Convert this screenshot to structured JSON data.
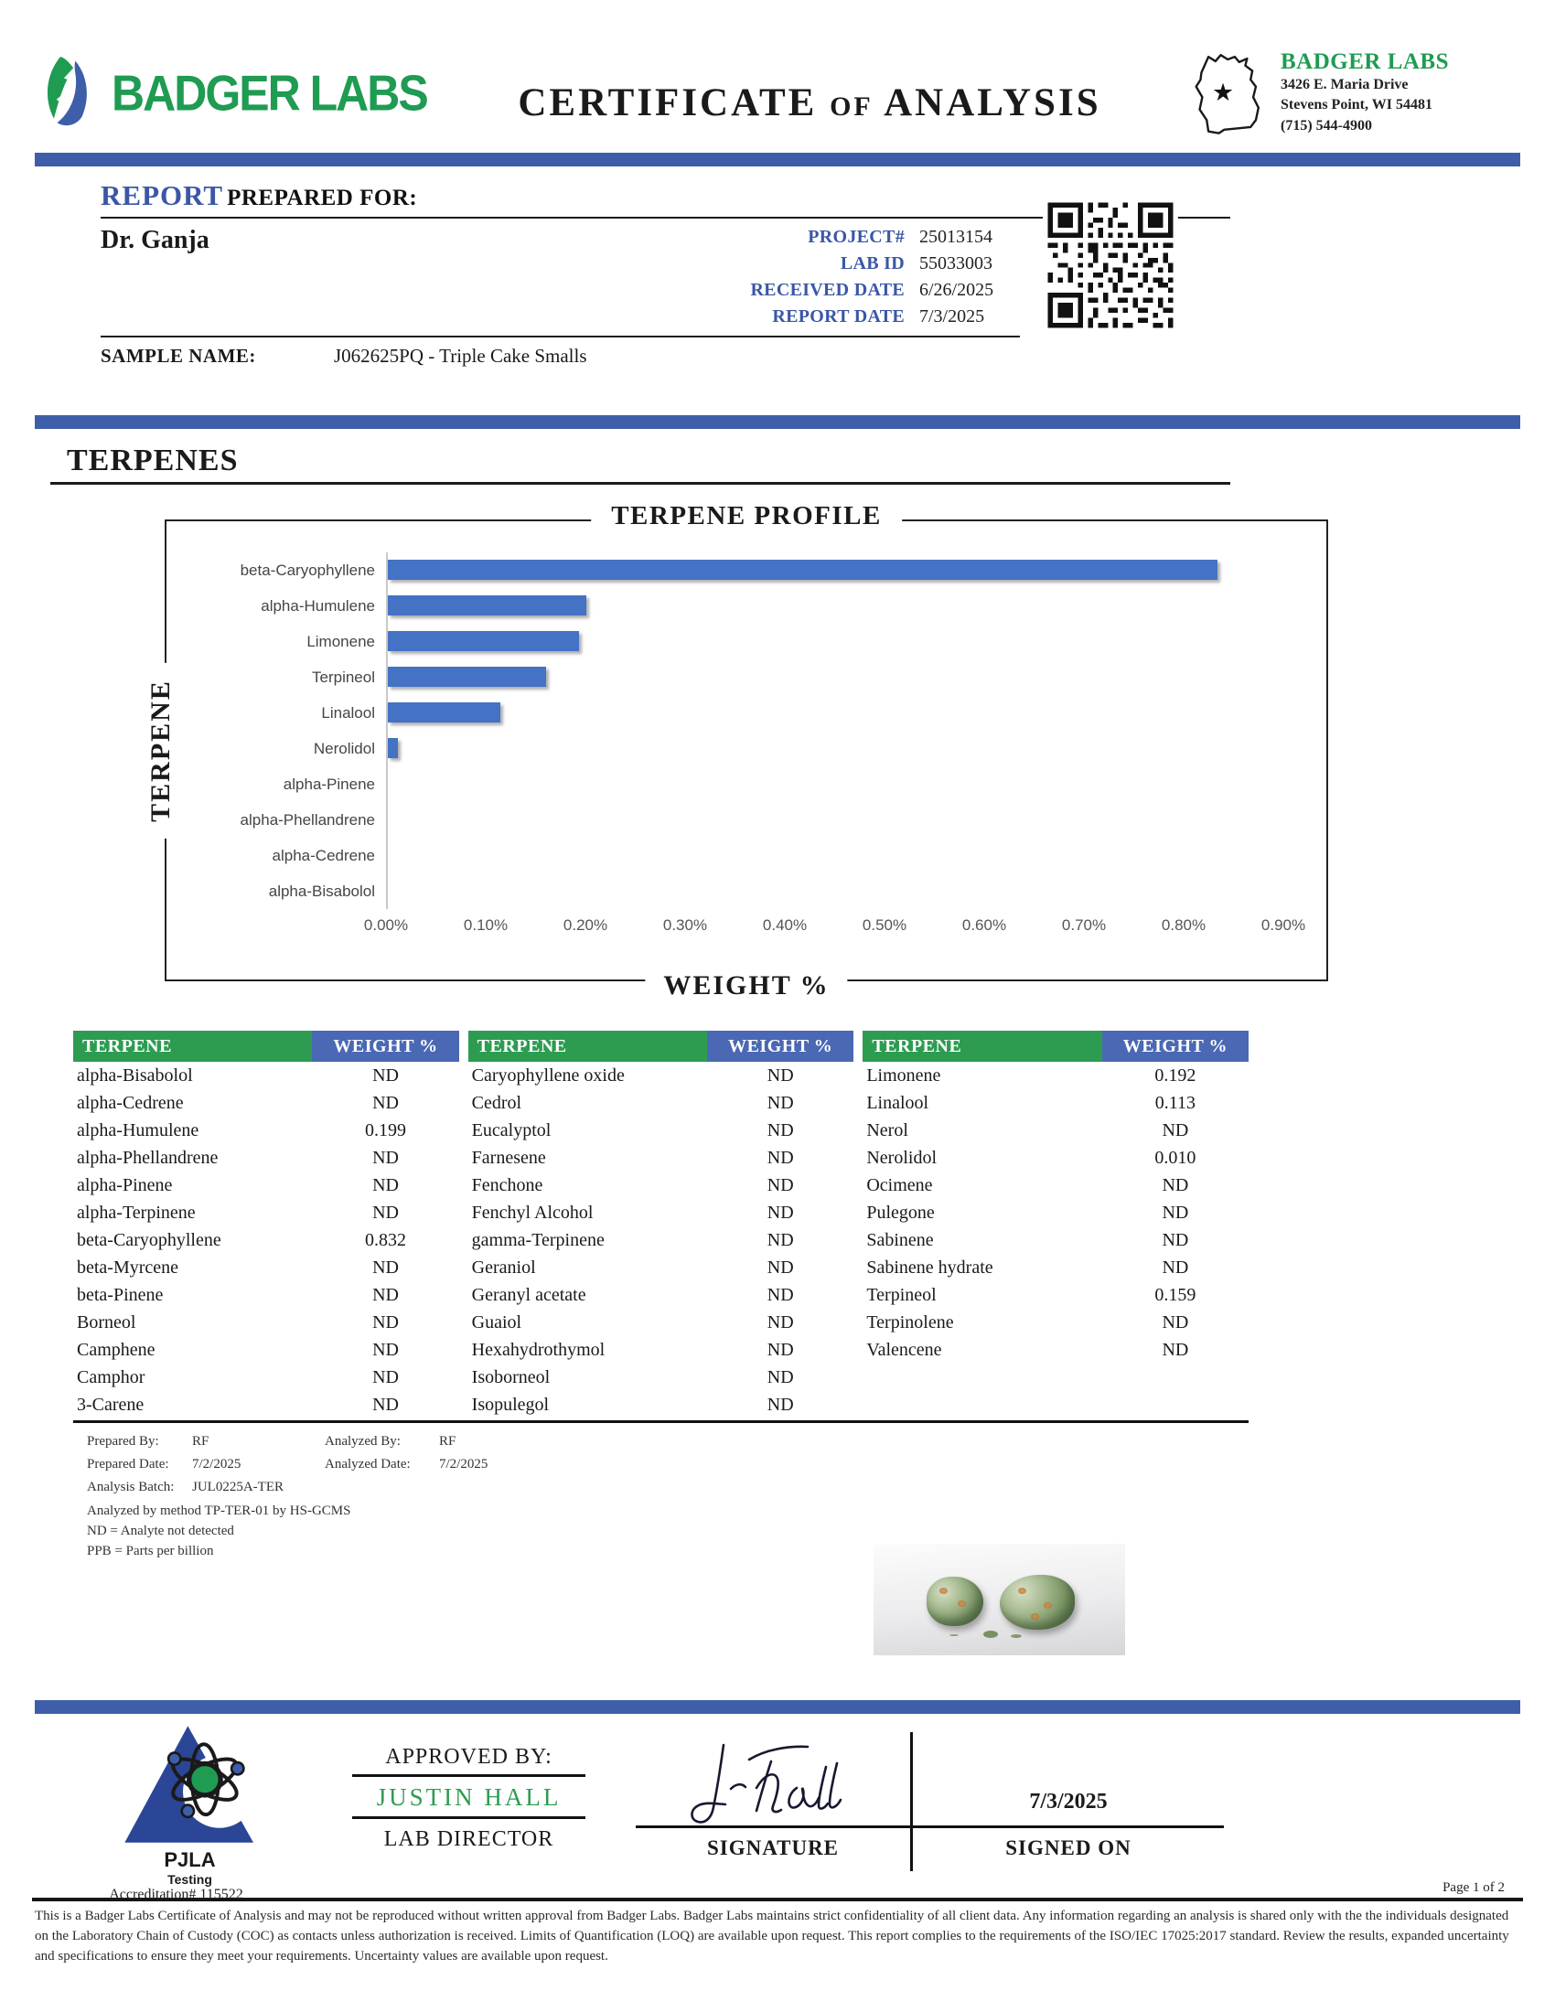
{
  "header": {
    "logo_text": "BADGER LABS",
    "title": "CERTIFICATE of ANALYSIS",
    "lab_name": "BADGER LABS",
    "address_line1": "3426 E. Maria Drive",
    "address_line2": "Stevens Point, WI 54481",
    "phone": "(715) 544-4900"
  },
  "report": {
    "heading_report": "REPORT",
    "heading_rest": " PREPARED FOR:",
    "client": "Dr. Ganja",
    "fields": [
      {
        "label": "PROJECT#",
        "value": "25013154"
      },
      {
        "label": "LAB ID",
        "value": "55033003"
      },
      {
        "label": "RECEIVED DATE",
        "value": "6/26/2025"
      },
      {
        "label": "REPORT DATE",
        "value": "7/3/2025"
      }
    ],
    "sample_label": "SAMPLE NAME:",
    "sample_value": "J062625PQ - Triple Cake Smalls"
  },
  "section_title": "TERPENES",
  "chart_data": {
    "type": "bar",
    "orientation": "horizontal",
    "title": "TERPENE PROFILE",
    "xlabel": "WEIGHT %",
    "ylabel": "TERPENE",
    "categories": [
      "beta-Caryophyllene",
      "alpha-Humulene",
      "Limonene",
      "Terpineol",
      "Linalool",
      "Nerolidol",
      "alpha-Pinene",
      "alpha-Phellandrene",
      "alpha-Cedrene",
      "alpha-Bisabolol"
    ],
    "values": [
      0.832,
      0.199,
      0.192,
      0.159,
      0.113,
      0.01,
      0,
      0,
      0,
      0
    ],
    "xlim": [
      0,
      0.9
    ],
    "xticks": [
      "0.00%",
      "0.10%",
      "0.20%",
      "0.30%",
      "0.40%",
      "0.50%",
      "0.60%",
      "0.70%",
      "0.80%",
      "0.90%"
    ],
    "bar_color": "#4472c4",
    "grid": false,
    "legend": false
  },
  "terpene_table": {
    "header_terpene": "TERPENE",
    "header_weight": "WEIGHT %",
    "columns": [
      {
        "rows": [
          [
            "alpha-Bisabolol",
            "ND"
          ],
          [
            "alpha-Cedrene",
            "ND"
          ],
          [
            "alpha-Humulene",
            "0.199"
          ],
          [
            "alpha-Phellandrene",
            "ND"
          ],
          [
            "alpha-Pinene",
            "ND"
          ],
          [
            "alpha-Terpinene",
            "ND"
          ],
          [
            "beta-Caryophyllene",
            "0.832"
          ],
          [
            "beta-Myrcene",
            "ND"
          ],
          [
            "beta-Pinene",
            "ND"
          ],
          [
            "Borneol",
            "ND"
          ],
          [
            "Camphene",
            "ND"
          ],
          [
            "Camphor",
            "ND"
          ],
          [
            "3-Carene",
            "ND"
          ]
        ]
      },
      {
        "rows": [
          [
            "Caryophyllene oxide",
            "ND"
          ],
          [
            "Cedrol",
            "ND"
          ],
          [
            "Eucalyptol",
            "ND"
          ],
          [
            "Farnesene",
            "ND"
          ],
          [
            "Fenchone",
            "ND"
          ],
          [
            "Fenchyl Alcohol",
            "ND"
          ],
          [
            "gamma-Terpinene",
            "ND"
          ],
          [
            "Geraniol",
            "ND"
          ],
          [
            "Geranyl acetate",
            "ND"
          ],
          [
            "Guaiol",
            "ND"
          ],
          [
            "Hexahydrothymol",
            "ND"
          ],
          [
            "Isoborneol",
            "ND"
          ],
          [
            "Isopulegol",
            "ND"
          ]
        ]
      },
      {
        "rows": [
          [
            "Limonene",
            "0.192"
          ],
          [
            "Linalool",
            "0.113"
          ],
          [
            "Nerol",
            "ND"
          ],
          [
            "Nerolidol",
            "0.010"
          ],
          [
            "Ocimene",
            "ND"
          ],
          [
            "Pulegone",
            "ND"
          ],
          [
            "Sabinene",
            "ND"
          ],
          [
            "Sabinene hydrate",
            "ND"
          ],
          [
            "Terpineol",
            "0.159"
          ],
          [
            "Terpinolene",
            "ND"
          ],
          [
            "Valencene",
            "ND"
          ]
        ]
      }
    ]
  },
  "footnotes": {
    "prepared_by_label": "Prepared By:",
    "prepared_by": "RF",
    "analyzed_by_label": "Analyzed By:",
    "analyzed_by": "RF",
    "prepared_date_label": "Prepared Date:",
    "prepared_date": "7/2/2025",
    "analyzed_date_label": "Analyzed Date:",
    "analyzed_date": "7/2/2025",
    "analysis_batch_label": "Analysis Batch:",
    "analysis_batch": "JUL0225A-TER",
    "method": "Analyzed by method TP-TER-01 by HS-GCMS",
    "nd_note": "ND = Analyte not detected",
    "ppb_note": "PPB = Parts per billion"
  },
  "approval": {
    "approved_by_label": "APPROVED BY:",
    "approver_name": "JUSTIN HALL",
    "approver_title": "LAB DIRECTOR",
    "signature_label": "SIGNATURE",
    "signed_on_label": "SIGNED ON",
    "signed_on_date": "7/3/2025",
    "accreditation_org": "PJLA",
    "accreditation_type": "Testing",
    "accreditation_number": "Accreditation# 115522"
  },
  "footer": {
    "page": "Page 1 of 2",
    "disclaimer": "This is a Badger Labs Certificate of Analysis and may not be reproduced without written approval from Badger Labs. Badger Labs maintains strict confidentiality of all client data. Any information regarding an analysis is shared only with the the individuals designated on the Laboratory Chain of Custody (COC) as contacts unless authorization is received. Limits of Quantification (LOQ) are available upon request. This report complies to the requirements of the ISO/IEC 17025:2017 standard. Review the results, expanded uncertainty and specifications to ensure they meet your requirements. Uncertainty values are available upon request."
  },
  "colors": {
    "accent_blue": "#3f5ea9",
    "accent_green": "#1f9b52",
    "table_header_green": "#2d9c51",
    "table_header_blue": "#4a68b4",
    "bar_blue": "#4472c4"
  }
}
